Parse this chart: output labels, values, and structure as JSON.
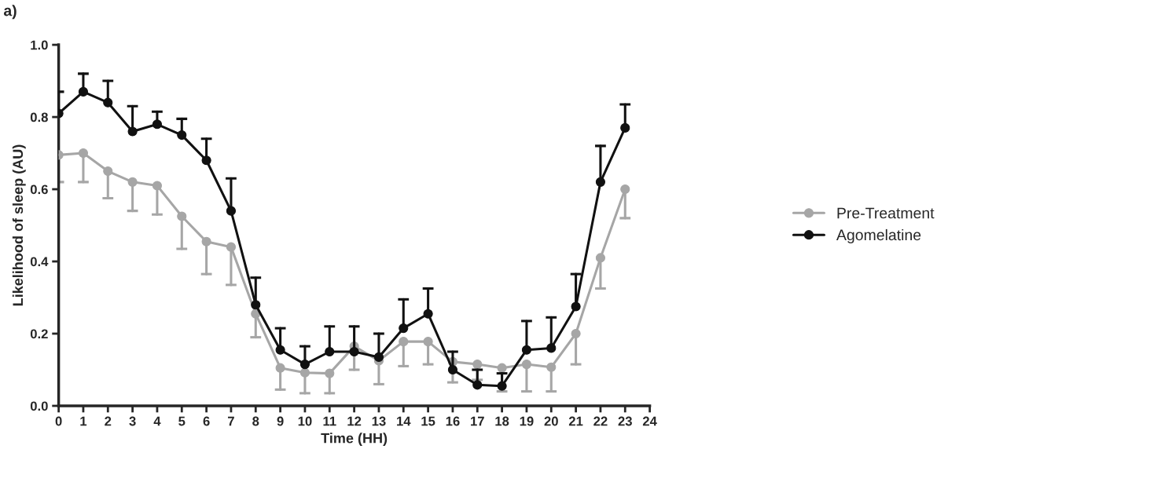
{
  "chart_data": {
    "type": "line",
    "title": "a)",
    "xlabel": "Time (HH)",
    "ylabel": "Likelihood of sleep (AU)",
    "x": [
      0,
      1,
      2,
      3,
      4,
      5,
      6,
      7,
      8,
      9,
      10,
      11,
      12,
      13,
      14,
      15,
      16,
      17,
      18,
      19,
      20,
      21,
      22,
      23
    ],
    "xlim": [
      0,
      24
    ],
    "xticks": [
      0,
      1,
      2,
      3,
      4,
      5,
      6,
      7,
      8,
      9,
      10,
      11,
      12,
      13,
      14,
      15,
      16,
      17,
      18,
      19,
      20,
      21,
      22,
      23,
      24
    ],
    "ylim": [
      0,
      1.0
    ],
    "yticks": [
      {
        "value": 0,
        "label": "0.0"
      },
      {
        "value": 0.2,
        "label": "0.2"
      },
      {
        "value": 0.4,
        "label": "0.4"
      },
      {
        "value": 0.6,
        "label": "0.6"
      },
      {
        "value": 0.8,
        "label": "0.8"
      },
      {
        "value": 1.0,
        "label": "1.0"
      }
    ],
    "marker": "circle",
    "line_style": "solid",
    "grid": false,
    "legend": "right",
    "series": [
      {
        "name": "Pre-Treatment",
        "color": "#a6a6a6",
        "values": [
          0.695,
          0.7,
          0.65,
          0.62,
          0.61,
          0.525,
          0.455,
          0.44,
          0.255,
          0.105,
          0.092,
          0.09,
          0.165,
          0.125,
          0.178,
          0.178,
          0.122,
          0.115,
          0.105,
          0.115,
          0.107,
          0.2,
          0.41,
          0.6
        ],
        "errors": [
          [
            0.62,
            0.695
          ],
          [
            0.62,
            0.7
          ],
          [
            0.575,
            0.65
          ],
          [
            0.54,
            0.62
          ],
          [
            0.53,
            0.61
          ],
          [
            0.435,
            0.525
          ],
          [
            0.365,
            0.455
          ],
          [
            0.335,
            0.44
          ],
          [
            0.19,
            0.255
          ],
          [
            0.045,
            0.105
          ],
          [
            0.035,
            0.092
          ],
          [
            0.035,
            0.09
          ],
          [
            0.1,
            0.165
          ],
          [
            0.06,
            0.125
          ],
          [
            0.11,
            0.178
          ],
          [
            0.115,
            0.178
          ],
          [
            0.065,
            0.122
          ],
          [
            0.072,
            0.115
          ],
          [
            0.04,
            0.105
          ],
          [
            0.04,
            0.115
          ],
          [
            0.04,
            0.107
          ],
          [
            0.115,
            0.2
          ],
          [
            0.325,
            0.41
          ],
          [
            0.52,
            0.6
          ]
        ]
      },
      {
        "name": "Agomelatine",
        "color": "#111111",
        "values": [
          0.81,
          0.87,
          0.84,
          0.76,
          0.78,
          0.75,
          0.68,
          0.54,
          0.28,
          0.155,
          0.115,
          0.15,
          0.15,
          0.135,
          0.215,
          0.255,
          0.1,
          0.058,
          0.055,
          0.155,
          0.16,
          0.275,
          0.62,
          0.77
        ],
        "errors": [
          [
            0.81,
            0.87
          ],
          [
            0.87,
            0.92
          ],
          [
            0.84,
            0.9
          ],
          [
            0.76,
            0.83
          ],
          [
            0.78,
            0.815
          ],
          [
            0.75,
            0.795
          ],
          [
            0.68,
            0.74
          ],
          [
            0.54,
            0.63
          ],
          [
            0.28,
            0.355
          ],
          [
            0.155,
            0.215
          ],
          [
            0.115,
            0.165
          ],
          [
            0.15,
            0.22
          ],
          [
            0.15,
            0.22
          ],
          [
            0.135,
            0.2
          ],
          [
            0.215,
            0.295
          ],
          [
            0.255,
            0.325
          ],
          [
            0.1,
            0.15
          ],
          [
            0.058,
            0.1
          ],
          [
            0.055,
            0.09
          ],
          [
            0.155,
            0.235
          ],
          [
            0.16,
            0.245
          ],
          [
            0.275,
            0.365
          ],
          [
            0.62,
            0.72
          ],
          [
            0.77,
            0.835
          ]
        ]
      }
    ]
  }
}
